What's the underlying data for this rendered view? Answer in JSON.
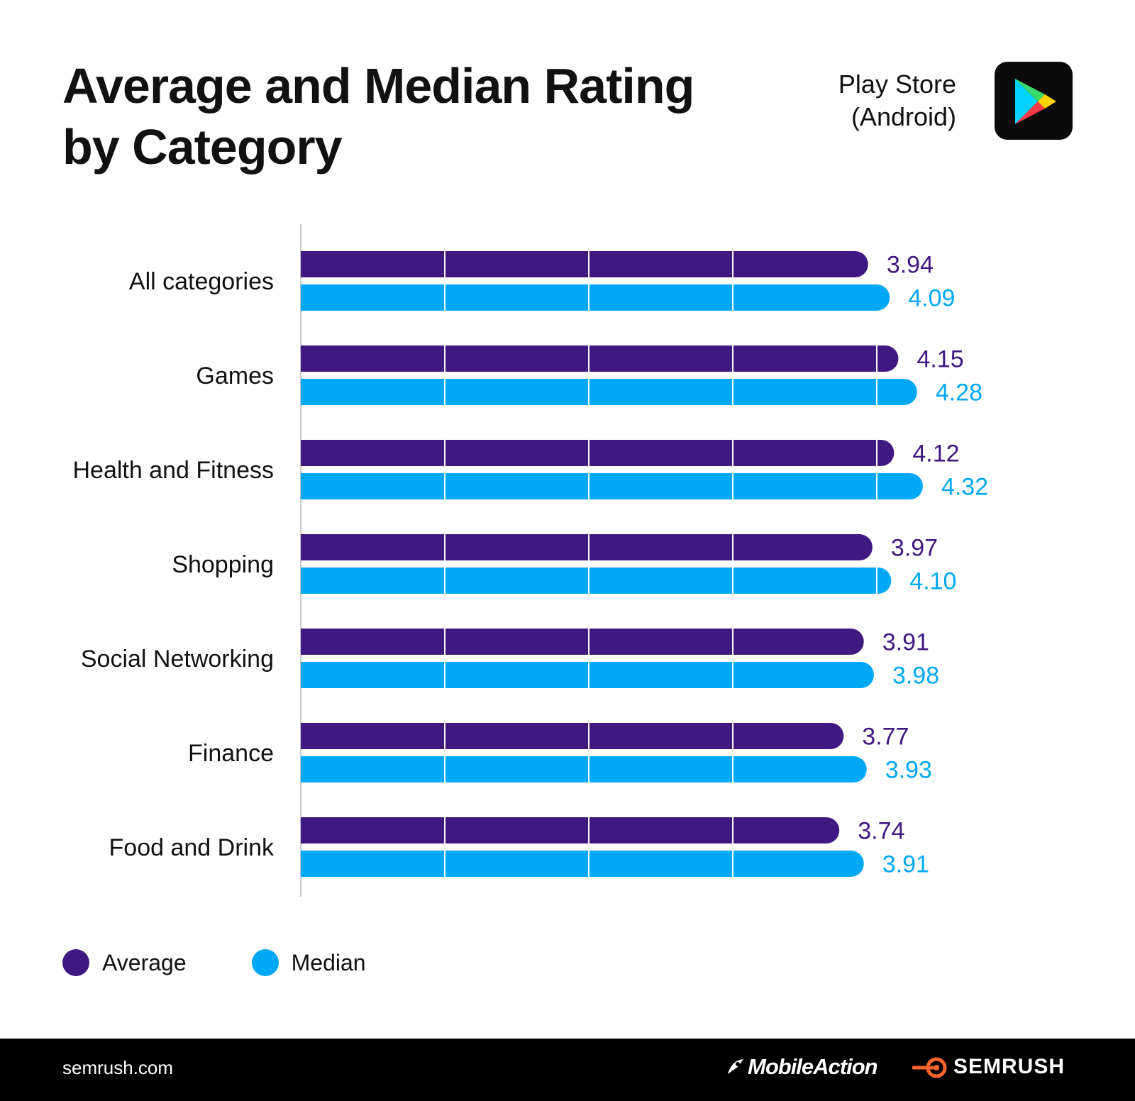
{
  "header": {
    "title_line1": "Average and Median Rating",
    "title_line2": "by Category",
    "store_line1": "Play Store",
    "store_line2": "(Android)",
    "store_icon": "google-play-icon"
  },
  "chart_data": {
    "type": "bar",
    "orientation": "horizontal",
    "categories": [
      "All categories",
      "Games",
      "Health and Fitness",
      "Shopping",
      "Social Networking",
      "Finance",
      "Food and Drink"
    ],
    "series": [
      {
        "name": "Average",
        "color": "#3f1881",
        "values": [
          3.94,
          4.15,
          4.12,
          3.97,
          3.91,
          3.77,
          3.74
        ],
        "labels": [
          "3.94",
          "4.15",
          "4.12",
          "3.97",
          "3.91",
          "3.77",
          "3.74"
        ]
      },
      {
        "name": "Median",
        "color": "#00a8f5",
        "values": [
          4.09,
          4.28,
          4.32,
          4.1,
          3.98,
          3.93,
          3.91
        ],
        "labels": [
          "4.09",
          "4.28",
          "4.32",
          "4.10",
          "3.98",
          "3.93",
          "3.91"
        ]
      }
    ],
    "xlim": [
      0,
      4.65
    ],
    "xticks": [
      0,
      1,
      2,
      3,
      4
    ],
    "grid": true,
    "legend_position": "bottom-left"
  },
  "legend": {
    "average": "Average",
    "median": "Median"
  },
  "footer": {
    "site": "semrush.com",
    "brand_mobileaction": "MobileAction",
    "brand_semrush": "SEMRUSH"
  }
}
